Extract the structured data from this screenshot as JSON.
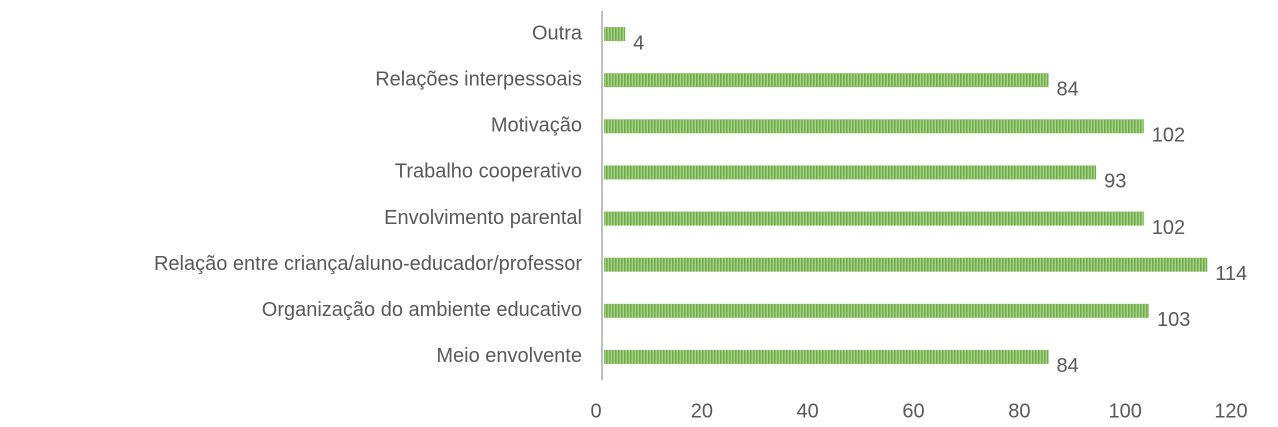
{
  "chart_data": {
    "type": "bar",
    "orientation": "horizontal",
    "categories": [
      "Outra",
      "Relações interpessoais",
      "Motivação",
      "Trabalho cooperativo",
      "Envolvimento parental",
      "Relação entre criança/aluno-educador/professor",
      "Organização do ambiente educativo",
      "Meio envolvente"
    ],
    "values": [
      4,
      84,
      102,
      93,
      102,
      114,
      103,
      84
    ],
    "color": "#70ad47",
    "xlim": [
      0,
      120
    ],
    "xticks": [
      0,
      20,
      40,
      60,
      80,
      100,
      120
    ],
    "grid": false
  }
}
